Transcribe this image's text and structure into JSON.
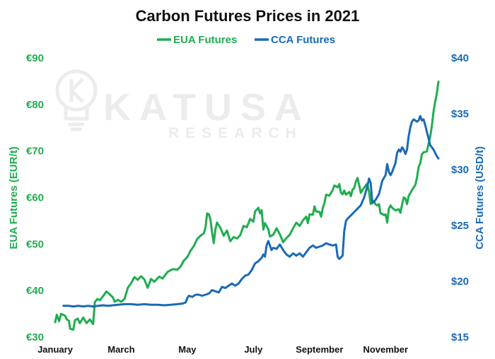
{
  "chart_data": {
    "type": "line",
    "title": "Carbon Futures Prices in 2021",
    "watermark": {
      "brand": "KATUSA",
      "sub": "RESEARCH"
    },
    "colors": {
      "eua": "#1fad4f",
      "cca": "#1a6ab5",
      "watermark": "#ececec"
    },
    "legend": {
      "placement": "top-center",
      "entries": [
        "EUA Futures",
        "CCA Futures"
      ]
    },
    "x_axis": {
      "ticks": [
        {
          "label": "January",
          "month": 0
        },
        {
          "label": "March",
          "month": 2
        },
        {
          "label": "May",
          "month": 4
        },
        {
          "label": "July",
          "month": 6
        },
        {
          "label": "September",
          "month": 8
        },
        {
          "label": "November",
          "month": 10
        }
      ],
      "range_months": [
        0,
        11.6
      ]
    },
    "y_left": {
      "label": "EUA Futures (EUR/t)",
      "range": [
        30,
        90
      ],
      "ticks": [
        "€30",
        "€40",
        "€50",
        "€60",
        "€70",
        "€80",
        "€90"
      ],
      "tick_values": [
        30,
        40,
        50,
        60,
        70,
        80,
        90
      ]
    },
    "y_right": {
      "label": "CCA Futures (USD/t)",
      "range": [
        15,
        40
      ],
      "ticks": [
        "$15",
        "$20",
        "$25",
        "$30",
        "$35",
        "$40"
      ],
      "tick_values": [
        15,
        20,
        25,
        30,
        35,
        40
      ]
    },
    "grid": false,
    "series": [
      {
        "name": "EUA Futures",
        "axis": "left",
        "points": [
          [
            0.0,
            33.2
          ],
          [
            0.05,
            34.8
          ],
          [
            0.12,
            33.4
          ],
          [
            0.18,
            35.0
          ],
          [
            0.3,
            34.6
          ],
          [
            0.35,
            33.8
          ],
          [
            0.42,
            33.5
          ],
          [
            0.45,
            31.8
          ],
          [
            0.55,
            31.6
          ],
          [
            0.6,
            33.6
          ],
          [
            0.68,
            34.0
          ],
          [
            0.75,
            33.0
          ],
          [
            0.85,
            34.2
          ],
          [
            0.95,
            33.0
          ],
          [
            1.05,
            33.8
          ],
          [
            1.15,
            32.8
          ],
          [
            1.2,
            37.5
          ],
          [
            1.28,
            38.2
          ],
          [
            1.35,
            37.9
          ],
          [
            1.45,
            38.8
          ],
          [
            1.55,
            39.8
          ],
          [
            1.65,
            39.2
          ],
          [
            1.75,
            38.5
          ],
          [
            1.8,
            37.6
          ],
          [
            1.9,
            38.0
          ],
          [
            2.0,
            37.6
          ],
          [
            2.1,
            38.2
          ],
          [
            2.2,
            40.6
          ],
          [
            2.3,
            41.6
          ],
          [
            2.4,
            42.9
          ],
          [
            2.5,
            42.3
          ],
          [
            2.6,
            43.1
          ],
          [
            2.7,
            42.4
          ],
          [
            2.8,
            40.6
          ],
          [
            2.9,
            42.5
          ],
          [
            3.0,
            41.9
          ],
          [
            3.15,
            43.0
          ],
          [
            3.25,
            42.6
          ],
          [
            3.4,
            44.0
          ],
          [
            3.55,
            44.6
          ],
          [
            3.7,
            44.5
          ],
          [
            3.8,
            45.2
          ],
          [
            3.9,
            46.5
          ],
          [
            4.0,
            47.2
          ],
          [
            4.1,
            48.6
          ],
          [
            4.2,
            49.6
          ],
          [
            4.3,
            51.1
          ],
          [
            4.4,
            51.8
          ],
          [
            4.5,
            52.3
          ],
          [
            4.55,
            53.6
          ],
          [
            4.6,
            56.6
          ],
          [
            4.65,
            56.4
          ],
          [
            4.7,
            55.3
          ],
          [
            4.75,
            52.5
          ],
          [
            4.8,
            50.2
          ],
          [
            4.85,
            53.1
          ],
          [
            4.9,
            54.6
          ],
          [
            5.0,
            53.5
          ],
          [
            5.1,
            51.8
          ],
          [
            5.2,
            52.9
          ],
          [
            5.3,
            50.6
          ],
          [
            5.4,
            51.5
          ],
          [
            5.5,
            51.2
          ],
          [
            5.6,
            51.9
          ],
          [
            5.7,
            53.9
          ],
          [
            5.8,
            53.6
          ],
          [
            5.9,
            55.4
          ],
          [
            6.0,
            54.8
          ],
          [
            6.05,
            57.0
          ],
          [
            6.15,
            57.8
          ],
          [
            6.2,
            56.6
          ],
          [
            6.25,
            57.3
          ],
          [
            6.3,
            53.1
          ],
          [
            6.35,
            54.5
          ],
          [
            6.45,
            53.2
          ],
          [
            6.5,
            51.6
          ],
          [
            6.6,
            52.0
          ],
          [
            6.7,
            53.4
          ],
          [
            6.8,
            52.1
          ],
          [
            6.9,
            50.4
          ],
          [
            7.0,
            51.3
          ],
          [
            7.1,
            52.0
          ],
          [
            7.2,
            53.4
          ],
          [
            7.3,
            54.6
          ],
          [
            7.4,
            53.9
          ],
          [
            7.5,
            55.1
          ],
          [
            7.6,
            55.9
          ],
          [
            7.65,
            54.5
          ],
          [
            7.7,
            56.4
          ],
          [
            7.8,
            56.3
          ],
          [
            7.85,
            58.1
          ],
          [
            7.9,
            57.0
          ],
          [
            8.0,
            56.9
          ],
          [
            8.05,
            55.9
          ],
          [
            8.1,
            57.8
          ],
          [
            8.15,
            58.8
          ],
          [
            8.2,
            60.6
          ],
          [
            8.3,
            60.4
          ],
          [
            8.4,
            61.6
          ],
          [
            8.45,
            62.6
          ],
          [
            8.55,
            62.2
          ],
          [
            8.6,
            62.9
          ],
          [
            8.65,
            61.0
          ],
          [
            8.7,
            60.7
          ],
          [
            8.75,
            61.5
          ],
          [
            8.8,
            60.6
          ],
          [
            8.9,
            61.2
          ],
          [
            8.95,
            60.3
          ],
          [
            9.0,
            61.7
          ],
          [
            9.05,
            62.0
          ],
          [
            9.1,
            63.4
          ],
          [
            9.15,
            64.2
          ],
          [
            9.2,
            62.7
          ],
          [
            9.25,
            61.0
          ],
          [
            9.3,
            61.6
          ],
          [
            9.4,
            62.6
          ],
          [
            9.45,
            63.0
          ],
          [
            9.5,
            61.2
          ],
          [
            9.55,
            58.6
          ],
          [
            9.6,
            59.1
          ],
          [
            9.65,
            59.2
          ],
          [
            9.7,
            58.5
          ],
          [
            9.75,
            58.3
          ],
          [
            9.8,
            58.6
          ],
          [
            9.85,
            56.6
          ],
          [
            9.9,
            56.5
          ],
          [
            9.95,
            56.2
          ],
          [
            10.0,
            56.4
          ],
          [
            10.05,
            54.6
          ],
          [
            10.1,
            57.6
          ],
          [
            10.15,
            58.3
          ],
          [
            10.2,
            57.8
          ],
          [
            10.3,
            57.2
          ],
          [
            10.4,
            57.5
          ],
          [
            10.45,
            56.7
          ],
          [
            10.5,
            58.5
          ],
          [
            10.55,
            60.0
          ],
          [
            10.6,
            59.8
          ],
          [
            10.65,
            58.6
          ],
          [
            10.7,
            60.3
          ],
          [
            10.8,
            61.6
          ],
          [
            10.9,
            62.7
          ],
          [
            10.95,
            64.2
          ],
          [
            11.0,
            66.6
          ],
          [
            11.05,
            67.3
          ],
          [
            11.1,
            69.3
          ],
          [
            11.15,
            69.7
          ],
          [
            11.25,
            69.9
          ],
          [
            11.3,
            71.5
          ],
          [
            11.35,
            73.0
          ],
          [
            11.4,
            75.4
          ],
          [
            11.45,
            78.4
          ],
          [
            11.5,
            80.5
          ],
          [
            11.55,
            82.3
          ],
          [
            11.6,
            84.9
          ]
        ]
      },
      {
        "name": "CCA Futures",
        "axis": "right",
        "points": [
          [
            0.25,
            17.8
          ],
          [
            0.4,
            17.8
          ],
          [
            0.55,
            17.75
          ],
          [
            0.7,
            17.8
          ],
          [
            0.85,
            17.75
          ],
          [
            1.0,
            17.8
          ],
          [
            1.15,
            17.75
          ],
          [
            1.3,
            17.8
          ],
          [
            1.45,
            17.85
          ],
          [
            1.6,
            17.8
          ],
          [
            1.75,
            17.85
          ],
          [
            1.9,
            17.9
          ],
          [
            2.1,
            17.95
          ],
          [
            2.3,
            17.95
          ],
          [
            2.5,
            17.9
          ],
          [
            2.7,
            17.95
          ],
          [
            2.9,
            17.9
          ],
          [
            3.1,
            17.9
          ],
          [
            3.3,
            17.85
          ],
          [
            3.5,
            17.9
          ],
          [
            3.7,
            17.95
          ],
          [
            3.85,
            18.0
          ],
          [
            3.95,
            18.1
          ],
          [
            4.0,
            18.5
          ],
          [
            4.05,
            18.7
          ],
          [
            4.15,
            18.6
          ],
          [
            4.25,
            18.8
          ],
          [
            4.35,
            18.8
          ],
          [
            4.45,
            18.7
          ],
          [
            4.55,
            18.8
          ],
          [
            4.65,
            18.9
          ],
          [
            4.75,
            19.2
          ],
          [
            4.85,
            19.1
          ],
          [
            4.95,
            19.0
          ],
          [
            5.05,
            19.5
          ],
          [
            5.15,
            19.4
          ],
          [
            5.25,
            19.6
          ],
          [
            5.35,
            19.8
          ],
          [
            5.45,
            19.6
          ],
          [
            5.55,
            19.8
          ],
          [
            5.65,
            20.2
          ],
          [
            5.75,
            20.5
          ],
          [
            5.85,
            20.6
          ],
          [
            5.95,
            21.0
          ],
          [
            6.05,
            21.6
          ],
          [
            6.15,
            21.8
          ],
          [
            6.25,
            22.1
          ],
          [
            6.3,
            22.4
          ],
          [
            6.35,
            22.2
          ],
          [
            6.4,
            23.2
          ],
          [
            6.45,
            23.6
          ],
          [
            6.5,
            23.2
          ],
          [
            6.55,
            22.8
          ],
          [
            6.6,
            23.0
          ],
          [
            6.7,
            22.9
          ],
          [
            6.8,
            23.3
          ],
          [
            6.9,
            22.8
          ],
          [
            7.0,
            22.4
          ],
          [
            7.1,
            22.2
          ],
          [
            7.2,
            22.5
          ],
          [
            7.3,
            22.3
          ],
          [
            7.4,
            22.5
          ],
          [
            7.5,
            22.2
          ],
          [
            7.6,
            22.6
          ],
          [
            7.7,
            23.0
          ],
          [
            7.8,
            23.2
          ],
          [
            7.9,
            23.0
          ],
          [
            8.0,
            23.1
          ],
          [
            8.1,
            23.2
          ],
          [
            8.2,
            23.4
          ],
          [
            8.3,
            23.3
          ],
          [
            8.4,
            23.2
          ],
          [
            8.5,
            23.3
          ],
          [
            8.55,
            22.2
          ],
          [
            8.6,
            22.0
          ],
          [
            8.7,
            22.3
          ],
          [
            8.75,
            24.5
          ],
          [
            8.8,
            25.4
          ],
          [
            8.85,
            25.6
          ],
          [
            8.95,
            25.9
          ],
          [
            9.05,
            26.2
          ],
          [
            9.15,
            26.5
          ],
          [
            9.25,
            26.8
          ],
          [
            9.35,
            27.5
          ],
          [
            9.45,
            28.5
          ],
          [
            9.5,
            29.2
          ],
          [
            9.55,
            28.8
          ],
          [
            9.6,
            27.0
          ],
          [
            9.7,
            27.3
          ],
          [
            9.8,
            27.8
          ],
          [
            9.9,
            29.0
          ],
          [
            10.0,
            29.5
          ],
          [
            10.05,
            30.5
          ],
          [
            10.1,
            29.8
          ],
          [
            10.15,
            29.5
          ],
          [
            10.2,
            29.8
          ],
          [
            10.3,
            30.6
          ],
          [
            10.35,
            31.5
          ],
          [
            10.4,
            31.8
          ],
          [
            10.45,
            31.6
          ],
          [
            10.5,
            32.0
          ],
          [
            10.55,
            31.8
          ],
          [
            10.6,
            31.4
          ],
          [
            10.65,
            31.8
          ],
          [
            10.7,
            33.0
          ],
          [
            10.75,
            33.8
          ],
          [
            10.8,
            34.3
          ],
          [
            10.85,
            34.5
          ],
          [
            10.9,
            34.4
          ],
          [
            10.95,
            34.3
          ],
          [
            11.0,
            34.4
          ],
          [
            11.05,
            34.8
          ],
          [
            11.1,
            34.4
          ],
          [
            11.15,
            34.5
          ],
          [
            11.2,
            34.0
          ],
          [
            11.25,
            33.4
          ],
          [
            11.3,
            32.8
          ],
          [
            11.35,
            32.2
          ],
          [
            11.45,
            31.8
          ],
          [
            11.55,
            31.2
          ],
          [
            11.6,
            31.0
          ]
        ]
      }
    ]
  }
}
